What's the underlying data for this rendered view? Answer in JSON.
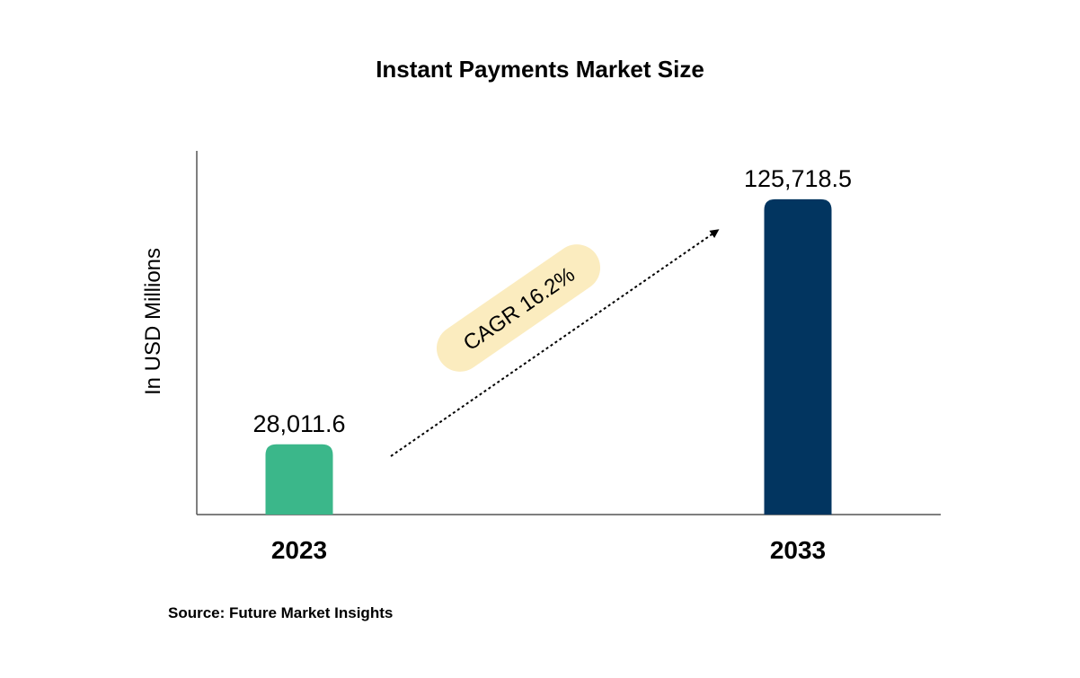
{
  "chart_data": {
    "type": "bar",
    "title": "Instant Payments Market Size",
    "ylabel": "In USD Millions",
    "xlabel": "",
    "categories": [
      "2023",
      "2033"
    ],
    "values": [
      28011.6,
      125718.5
    ],
    "value_labels": [
      "28,011.6",
      "125,718.5"
    ],
    "bar_colors": [
      "#3bb78a",
      "#023560"
    ],
    "ylim": [
      0,
      145000
    ],
    "grid": false,
    "annotation": {
      "text": "CAGR 16.2%",
      "badge_color": "#fbecbf",
      "arrow": "dotted, from 2023 bar toward 2033 bar"
    },
    "source": "Source: Future Market Insights"
  }
}
